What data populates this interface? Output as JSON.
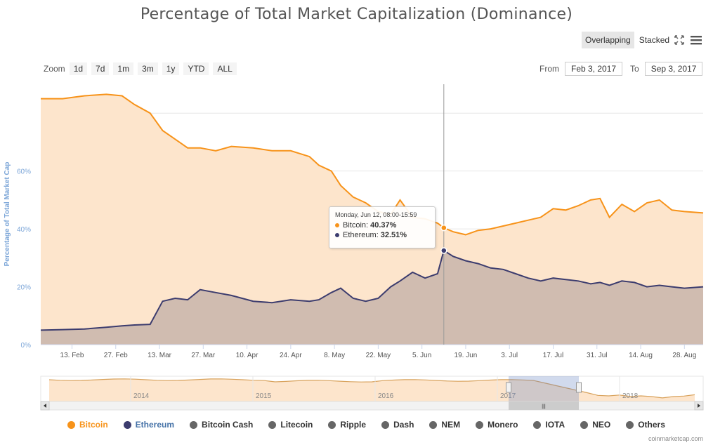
{
  "title": "Percentage of Total Market Capitalization (Dominance)",
  "view_modes": [
    {
      "label": "Overlapping",
      "active": true
    },
    {
      "label": "Stacked",
      "active": false
    }
  ],
  "toolbar_icons": [
    "fullscreen-icon",
    "menu-icon"
  ],
  "zoom": {
    "label": "Zoom",
    "buttons": [
      "1d",
      "7d",
      "1m",
      "3m",
      "1y",
      "YTD",
      "ALL"
    ]
  },
  "range": {
    "from_label": "From",
    "from_value": "Feb 3, 2017",
    "to_label": "To",
    "to_value": "Sep 3, 2017"
  },
  "tooltip": {
    "header": "Monday, Jun 12, 08:00-15:59",
    "rows": [
      {
        "name": "Bitcoin",
        "value": "40.37%"
      },
      {
        "name": "Ethereum",
        "value": "32.51%"
      }
    ]
  },
  "chart_data": {
    "type": "area",
    "title": "Percentage of Total Market Capitalization (Dominance)",
    "ylabel": "Percentage of Total Market Cap",
    "ylim": [
      0,
      90
    ],
    "yticks": [
      0,
      20,
      40,
      60
    ],
    "ytick_labels": [
      "0%",
      "20%",
      "40%",
      "60%"
    ],
    "xlim": [
      "2017-02-03",
      "2017-09-03"
    ],
    "xticks": [
      "2017-02-13",
      "2017-02-27",
      "2017-03-13",
      "2017-03-27",
      "2017-04-10",
      "2017-04-24",
      "2017-05-08",
      "2017-05-22",
      "2017-06-05",
      "2017-06-19",
      "2017-07-03",
      "2017-07-17",
      "2017-07-31",
      "2017-08-14",
      "2017-08-28"
    ],
    "xtick_labels": [
      "13. Feb",
      "27. Feb",
      "13. Mar",
      "27. Mar",
      "10. Apr",
      "24. Apr",
      "8. May",
      "22. May",
      "5. Jun",
      "19. Jun",
      "3. Jul",
      "17. Jul",
      "31. Jul",
      "14. Aug",
      "28. Aug"
    ],
    "grid": true,
    "legend_position": "bottom",
    "crosshair_date": "2017-06-12",
    "x": [
      "2017-02-03",
      "2017-02-10",
      "2017-02-17",
      "2017-02-24",
      "2017-03-01",
      "2017-03-05",
      "2017-03-10",
      "2017-03-14",
      "2017-03-18",
      "2017-03-22",
      "2017-03-26",
      "2017-03-31",
      "2017-04-05",
      "2017-04-12",
      "2017-04-18",
      "2017-04-24",
      "2017-04-30",
      "2017-05-03",
      "2017-05-07",
      "2017-05-10",
      "2017-05-14",
      "2017-05-18",
      "2017-05-22",
      "2017-05-26",
      "2017-05-29",
      "2017-06-02",
      "2017-06-06",
      "2017-06-10",
      "2017-06-12",
      "2017-06-15",
      "2017-06-19",
      "2017-06-23",
      "2017-06-27",
      "2017-07-01",
      "2017-07-05",
      "2017-07-09",
      "2017-07-13",
      "2017-07-17",
      "2017-07-21",
      "2017-07-25",
      "2017-07-29",
      "2017-08-01",
      "2017-08-04",
      "2017-08-08",
      "2017-08-12",
      "2017-08-16",
      "2017-08-20",
      "2017-08-24",
      "2017-08-28",
      "2017-09-03"
    ],
    "series": [
      {
        "name": "Bitcoin",
        "color": "#f7931a",
        "fill": "#fde5cc",
        "values": [
          85,
          85,
          86,
          86.5,
          86,
          83,
          80,
          74,
          71,
          68,
          68,
          67,
          68.5,
          68,
          67,
          67,
          65,
          62,
          60,
          55,
          51,
          49,
          46,
          45,
          50,
          44,
          43.5,
          42,
          40.37,
          39,
          38,
          39.5,
          40,
          41,
          42,
          43,
          44,
          47,
          46.5,
          48,
          50,
          50.5,
          44,
          48.5,
          46,
          49,
          50,
          46.5,
          46,
          45.5
        ]
      },
      {
        "name": "Ethereum",
        "color": "#3c3c6e",
        "fill": "#cdb9ae",
        "values": [
          5,
          5.2,
          5.4,
          6,
          6.5,
          6.8,
          7,
          15,
          16,
          15.5,
          19,
          18,
          17,
          15,
          14.5,
          15.5,
          15,
          15.5,
          18,
          19.5,
          16,
          15,
          16,
          20,
          22,
          25,
          23,
          24.5,
          32.51,
          30.5,
          29,
          28,
          26.5,
          26,
          24.5,
          23,
          22,
          23,
          22.5,
          22,
          21,
          21.5,
          20.5,
          22,
          21.5,
          20,
          20.5,
          20,
          19.5,
          20
        ]
      }
    ]
  },
  "navigator": {
    "years": [
      "2014",
      "2015",
      "2016",
      "2017",
      "2018"
    ],
    "scroll_handle": "|||"
  },
  "legend": [
    {
      "name": "Bitcoin",
      "color": "#f7931a",
      "text_color": "#f7931a"
    },
    {
      "name": "Ethereum",
      "color": "#3c3c6e",
      "text_color": "#4572a7"
    },
    {
      "name": "Bitcoin Cash",
      "color": "#666666",
      "text_color": "#333333"
    },
    {
      "name": "Litecoin",
      "color": "#666666",
      "text_color": "#333333"
    },
    {
      "name": "Ripple",
      "color": "#666666",
      "text_color": "#333333"
    },
    {
      "name": "Dash",
      "color": "#666666",
      "text_color": "#333333"
    },
    {
      "name": "NEM",
      "color": "#666666",
      "text_color": "#333333"
    },
    {
      "name": "Monero",
      "color": "#666666",
      "text_color": "#333333"
    },
    {
      "name": "IOTA",
      "color": "#666666",
      "text_color": "#333333"
    },
    {
      "name": "NEO",
      "color": "#666666",
      "text_color": "#333333"
    },
    {
      "name": "Others",
      "color": "#666666",
      "text_color": "#333333"
    }
  ],
  "credit": "coinmarketcap.com"
}
